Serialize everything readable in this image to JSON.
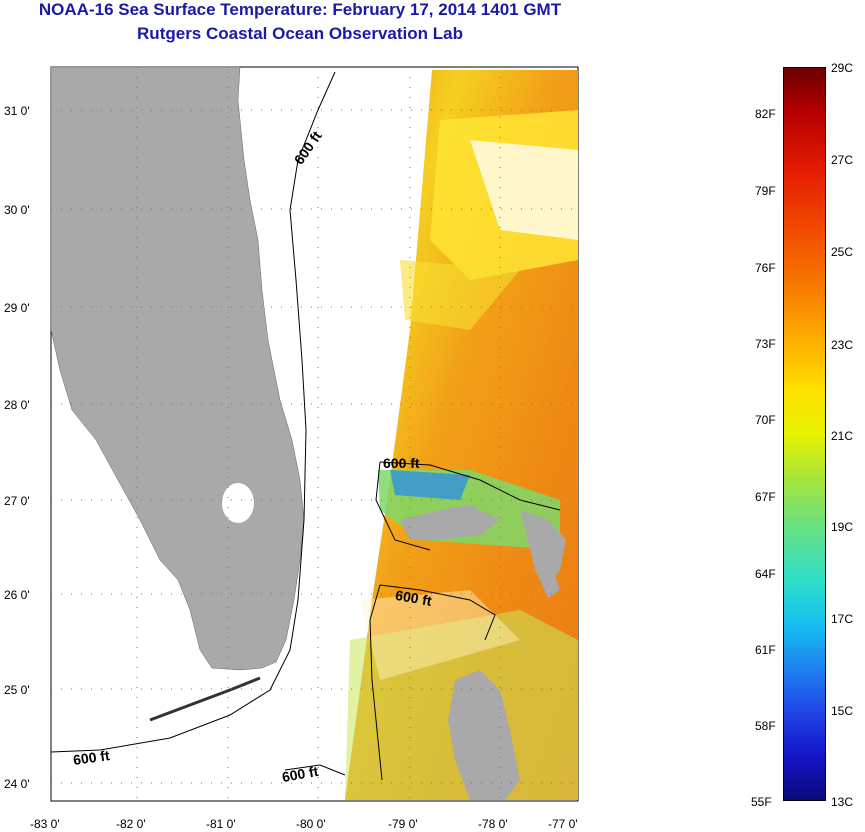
{
  "title": {
    "line1": "NOAA-16 Sea Surface Temperature:  February 17, 2014 1401 GMT",
    "line2": "Rutgers Coastal Ocean Observation Lab"
  },
  "map": {
    "lat_ticks": [
      "31 0'",
      "30 0'",
      "29 0'",
      "28 0'",
      "27 0'",
      "26 0'",
      "25 0'",
      "24 0'"
    ],
    "lon_ticks": [
      "-83 0'",
      "-82 0'",
      "-81 0'",
      "-80 0'",
      "-79 0'",
      "-78 0'",
      "-77 0'"
    ],
    "contour_label": "600 ft",
    "colors": {
      "land": "#a9a9a9",
      "frame": "#000000"
    }
  },
  "colorbar": {
    "fahrenheit": [
      "82F",
      "79F",
      "76F",
      "73F",
      "70F",
      "67F",
      "64F",
      "61F",
      "58F",
      "55F"
    ],
    "celsius": [
      "29C",
      "27C",
      "25C",
      "23C",
      "21C",
      "19C",
      "17C",
      "15C",
      "13C"
    ]
  }
}
